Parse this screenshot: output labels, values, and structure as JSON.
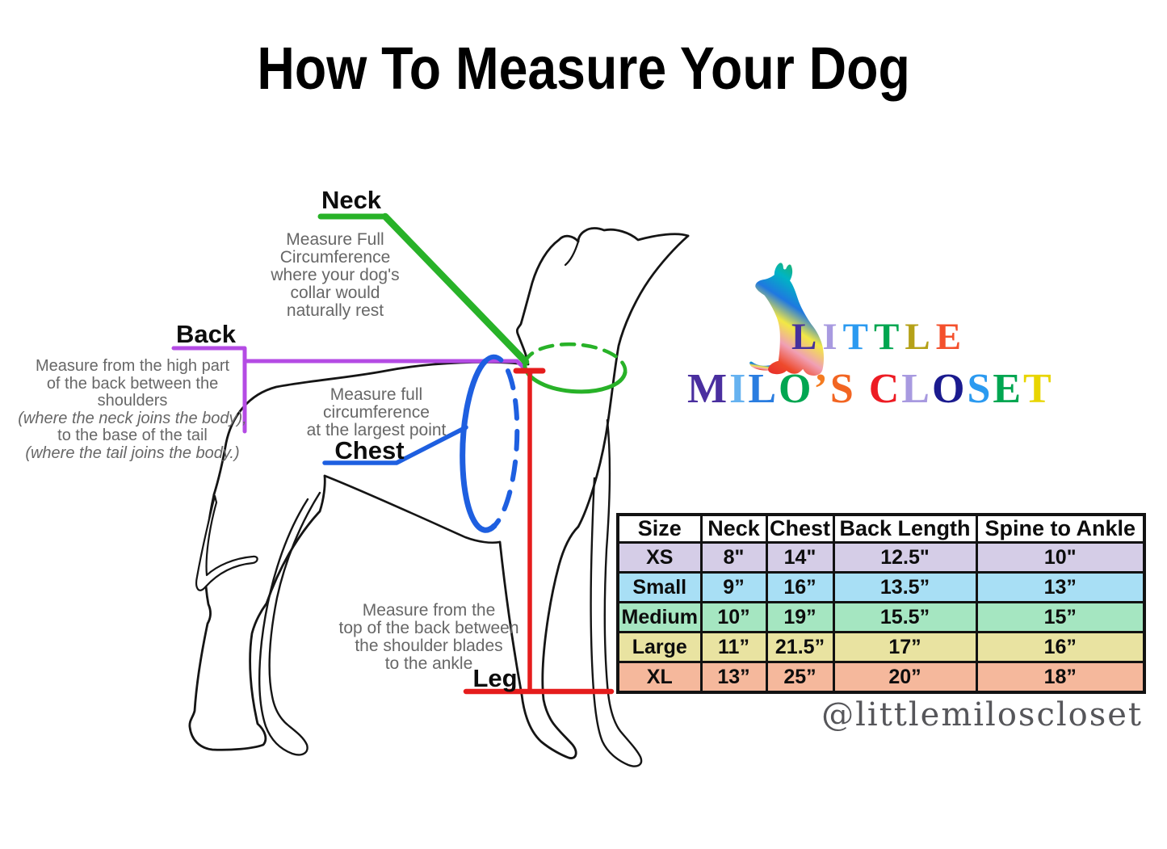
{
  "title": "How To Measure Your Dog",
  "annotations": {
    "neck": {
      "label": "Neck",
      "lines": [
        {
          "text": "Measure Full"
        },
        {
          "text": "Circumference"
        },
        {
          "text": "where your dog's"
        },
        {
          "text": "collar would"
        },
        {
          "text": "naturally rest"
        }
      ]
    },
    "back": {
      "label": "Back",
      "lines": [
        {
          "text": "Measure from the high part"
        },
        {
          "text": "of the back between the"
        },
        {
          "text": "shoulders"
        },
        {
          "text": "(where the neck joins the body),",
          "italic": true
        },
        {
          "text": "to the base of the tail"
        },
        {
          "text": "(where the tail joins the body.)",
          "italic": true
        }
      ]
    },
    "chest": {
      "label": "Chest",
      "lines": [
        {
          "text": "Measure full"
        },
        {
          "text": "circumference"
        },
        {
          "text": "at the largest point"
        }
      ]
    },
    "leg": {
      "label": "Leg",
      "lines": [
        {
          "text": "Measure from the"
        },
        {
          "text": "top of the back between"
        },
        {
          "text": "the shoulder blades"
        },
        {
          "text": "to the ankle"
        }
      ]
    }
  },
  "logo": {
    "line1": [
      {
        "ch": "L",
        "color": "#46319c"
      },
      {
        "ch": "I",
        "color": "#a89ae0"
      },
      {
        "ch": "T",
        "color": "#2b9af0"
      },
      {
        "ch": "T",
        "color": "#00a650"
      },
      {
        "ch": "L",
        "color": "#b5a118"
      },
      {
        "ch": "E",
        "color": "#f4502c"
      }
    ],
    "line2": [
      {
        "ch": "M",
        "color": "#4a2f9f"
      },
      {
        "ch": "I",
        "color": "#66b2f0"
      },
      {
        "ch": "L",
        "color": "#2a7de0"
      },
      {
        "ch": "O",
        "color": "#00a651"
      },
      {
        "ch": "’",
        "color": "#f47b20"
      },
      {
        "ch": "S",
        "color": "#f26522"
      },
      {
        "ch": " ",
        "color": "#000000"
      },
      {
        "ch": "C",
        "color": "#ed1c24"
      },
      {
        "ch": "L",
        "color": "#a89ae0"
      },
      {
        "ch": "O",
        "color": "#1b1b8f"
      },
      {
        "ch": "S",
        "color": "#2b9af0"
      },
      {
        "ch": "E",
        "color": "#00a651"
      },
      {
        "ch": "T",
        "color": "#e8d500"
      }
    ]
  },
  "size_chart": {
    "columns": [
      "Size",
      "Neck",
      "Chest",
      "Back Length",
      "Spine to Ankle"
    ],
    "column_keys": [
      "size",
      "neck",
      "chest",
      "back_length",
      "spine_to_ankle"
    ],
    "rows": [
      {
        "size": "XS",
        "neck": "8\"",
        "chest": "14\"",
        "back_length": "12.5\"",
        "spine_to_ankle": "10\"",
        "row_color": "#d5cde7"
      },
      {
        "size": "Small",
        "neck": "9”",
        "chest": "16”",
        "back_length": "13.5”",
        "spine_to_ankle": "13”",
        "row_color": "#a8dff5"
      },
      {
        "size": "Medium",
        "neck": "10”",
        "chest": "19”",
        "back_length": "15.5”",
        "spine_to_ankle": "15”",
        "row_color": "#a5e6c1"
      },
      {
        "size": "Large",
        "neck": "11”",
        "chest": "21.5”",
        "back_length": "17”",
        "spine_to_ankle": "16”",
        "row_color": "#e9e3a1"
      },
      {
        "size": "XL",
        "neck": "13”",
        "chest": "25”",
        "back_length": "20”",
        "spine_to_ankle": "18”",
        "row_color": "#f5b89c"
      }
    ]
  },
  "social_handle": "@littlemiloscloset",
  "colors": {
    "neck_line": "#28b228",
    "back_line": "#b44be4",
    "chest_line": "#1e5fe0",
    "leg_line": "#e51c1c",
    "note_text": "#676767",
    "outline": "#151515"
  }
}
